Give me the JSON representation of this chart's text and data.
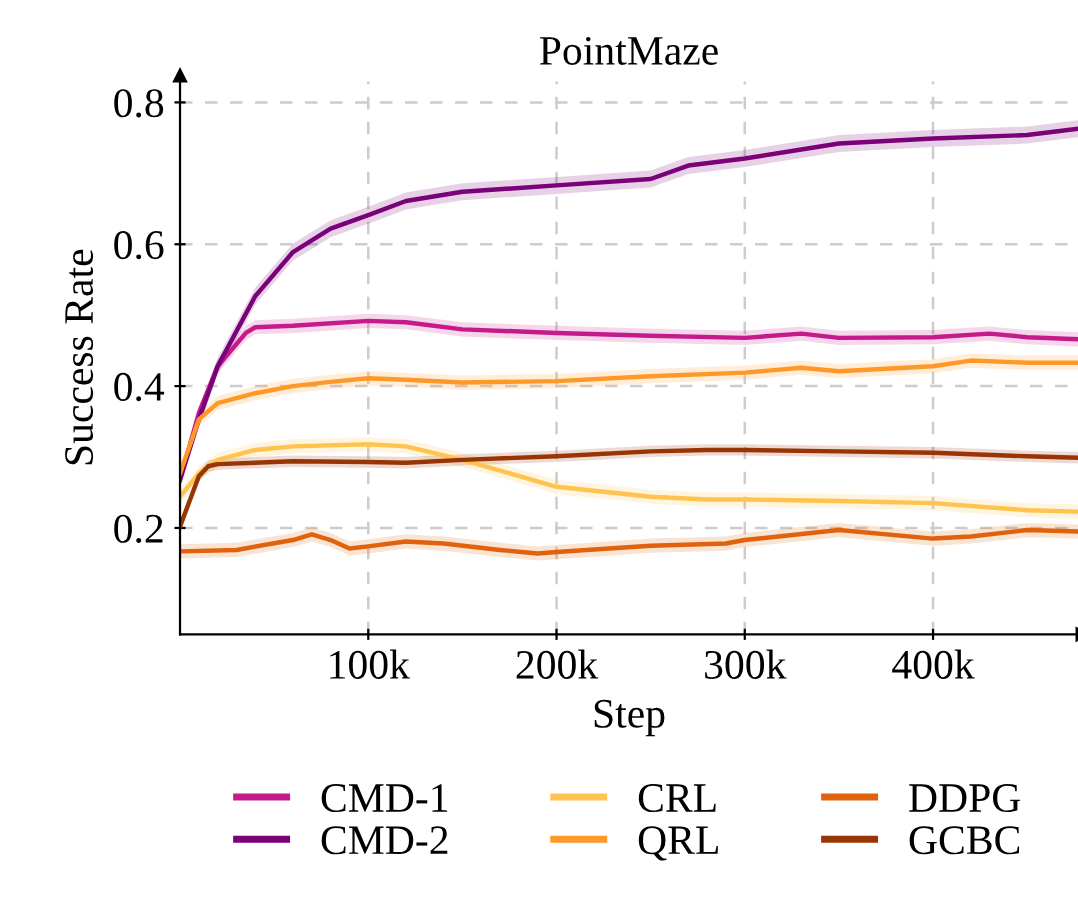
{
  "chart_data": {
    "type": "line",
    "title": "PointMaze",
    "xlabel": "Step",
    "ylabel": "Success Rate",
    "xlim": [
      0,
      477000
    ],
    "ylim": [
      0.05,
      0.83
    ],
    "xticks": [
      {
        "value": 100000,
        "label": "100k"
      },
      {
        "value": 200000,
        "label": "200k"
      },
      {
        "value": 300000,
        "label": "300k"
      },
      {
        "value": 400000,
        "label": "400k"
      }
    ],
    "yticks": [
      0.2,
      0.4,
      0.6,
      0.8
    ],
    "grid": true,
    "legend": "bottom",
    "line_style": "solid",
    "marker": "none",
    "series": [
      {
        "name": "CMD-1",
        "color": "#c51b8a",
        "x": [
          0,
          10000,
          20000,
          35000,
          40000,
          60000,
          100000,
          120000,
          150000,
          200000,
          250000,
          300000,
          330000,
          350000,
          400000,
          430000,
          450000,
          477000
        ],
        "values": [
          0.268,
          0.362,
          0.428,
          0.475,
          0.483,
          0.485,
          0.492,
          0.49,
          0.48,
          0.475,
          0.471,
          0.468,
          0.474,
          0.468,
          0.469,
          0.474,
          0.469,
          0.466
        ],
        "lower": [
          0.258,
          0.352,
          0.418,
          0.465,
          0.473,
          0.475,
          0.482,
          0.48,
          0.47,
          0.465,
          0.461,
          0.458,
          0.464,
          0.458,
          0.459,
          0.464,
          0.459,
          0.456
        ],
        "upper": [
          0.278,
          0.372,
          0.438,
          0.485,
          0.493,
          0.495,
          0.502,
          0.5,
          0.49,
          0.485,
          0.481,
          0.478,
          0.484,
          0.478,
          0.479,
          0.484,
          0.479,
          0.476
        ]
      },
      {
        "name": "CMD-2",
        "color": "#7a0177",
        "x": [
          0,
          10000,
          20000,
          40000,
          60000,
          80000,
          100000,
          120000,
          150000,
          200000,
          250000,
          270000,
          300000,
          350000,
          400000,
          450000,
          477000
        ],
        "values": [
          0.268,
          0.353,
          0.428,
          0.527,
          0.589,
          0.622,
          0.641,
          0.661,
          0.674,
          0.683,
          0.692,
          0.711,
          0.721,
          0.742,
          0.749,
          0.754,
          0.763
        ],
        "lower": [
          0.256,
          0.341,
          0.416,
          0.515,
          0.577,
          0.61,
          0.629,
          0.649,
          0.662,
          0.671,
          0.68,
          0.699,
          0.709,
          0.73,
          0.737,
          0.742,
          0.751
        ],
        "upper": [
          0.28,
          0.365,
          0.44,
          0.539,
          0.601,
          0.634,
          0.653,
          0.673,
          0.686,
          0.695,
          0.704,
          0.723,
          0.733,
          0.754,
          0.761,
          0.766,
          0.775
        ]
      },
      {
        "name": "CRL",
        "color": "#fec44f",
        "x": [
          0,
          10000,
          20000,
          40000,
          60000,
          100000,
          120000,
          150000,
          200000,
          250000,
          280000,
          300000,
          350000,
          400000,
          450000,
          477000
        ],
        "values": [
          0.244,
          0.277,
          0.296,
          0.31,
          0.315,
          0.318,
          0.315,
          0.296,
          0.258,
          0.244,
          0.24,
          0.24,
          0.238,
          0.235,
          0.225,
          0.223
        ],
        "lower": [
          0.234,
          0.267,
          0.286,
          0.3,
          0.305,
          0.308,
          0.305,
          0.286,
          0.248,
          0.234,
          0.23,
          0.23,
          0.228,
          0.225,
          0.215,
          0.213
        ],
        "upper": [
          0.254,
          0.287,
          0.306,
          0.32,
          0.325,
          0.328,
          0.325,
          0.306,
          0.268,
          0.254,
          0.25,
          0.25,
          0.248,
          0.245,
          0.235,
          0.233
        ]
      },
      {
        "name": "QRL",
        "color": "#fe9929",
        "x": [
          0,
          10000,
          20000,
          40000,
          60000,
          80000,
          100000,
          120000,
          150000,
          200000,
          250000,
          300000,
          330000,
          350000,
          400000,
          420000,
          450000,
          477000
        ],
        "values": [
          0.277,
          0.353,
          0.376,
          0.39,
          0.4,
          0.406,
          0.411,
          0.409,
          0.405,
          0.407,
          0.414,
          0.419,
          0.426,
          0.421,
          0.428,
          0.436,
          0.433,
          0.433
        ],
        "lower": [
          0.267,
          0.343,
          0.366,
          0.38,
          0.39,
          0.396,
          0.401,
          0.399,
          0.395,
          0.397,
          0.404,
          0.409,
          0.416,
          0.411,
          0.418,
          0.426,
          0.423,
          0.423
        ],
        "upper": [
          0.287,
          0.363,
          0.386,
          0.4,
          0.41,
          0.416,
          0.421,
          0.419,
          0.415,
          0.417,
          0.424,
          0.429,
          0.436,
          0.431,
          0.438,
          0.446,
          0.443,
          0.443
        ]
      },
      {
        "name": "DDPG",
        "color": "#e0620d",
        "x": [
          0,
          30000,
          60000,
          70000,
          80000,
          90000,
          100000,
          120000,
          140000,
          170000,
          190000,
          200000,
          250000,
          290000,
          300000,
          350000,
          400000,
          420000,
          450000,
          477000
        ],
        "values": [
          0.167,
          0.169,
          0.183,
          0.191,
          0.183,
          0.171,
          0.174,
          0.181,
          0.178,
          0.169,
          0.164,
          0.166,
          0.175,
          0.178,
          0.183,
          0.197,
          0.185,
          0.188,
          0.197,
          0.195
        ],
        "lower": [
          0.157,
          0.159,
          0.173,
          0.181,
          0.173,
          0.161,
          0.164,
          0.171,
          0.168,
          0.159,
          0.154,
          0.156,
          0.165,
          0.168,
          0.173,
          0.187,
          0.175,
          0.178,
          0.187,
          0.185
        ],
        "upper": [
          0.177,
          0.179,
          0.193,
          0.201,
          0.193,
          0.181,
          0.184,
          0.191,
          0.188,
          0.179,
          0.174,
          0.176,
          0.185,
          0.188,
          0.193,
          0.207,
          0.195,
          0.198,
          0.207,
          0.205
        ]
      },
      {
        "name": "GCBC",
        "color": "#993404",
        "x": [
          0,
          10000,
          15000,
          20000,
          60000,
          100000,
          120000,
          150000,
          200000,
          250000,
          280000,
          300000,
          350000,
          400000,
          450000,
          477000
        ],
        "values": [
          0.202,
          0.273,
          0.287,
          0.29,
          0.294,
          0.293,
          0.292,
          0.296,
          0.301,
          0.308,
          0.31,
          0.31,
          0.308,
          0.306,
          0.301,
          0.299
        ],
        "lower": [
          0.194,
          0.265,
          0.279,
          0.282,
          0.286,
          0.285,
          0.284,
          0.288,
          0.293,
          0.3,
          0.302,
          0.302,
          0.3,
          0.298,
          0.293,
          0.291
        ],
        "upper": [
          0.21,
          0.281,
          0.295,
          0.298,
          0.302,
          0.301,
          0.3,
          0.304,
          0.309,
          0.316,
          0.318,
          0.318,
          0.316,
          0.314,
          0.309,
          0.307
        ]
      }
    ]
  }
}
